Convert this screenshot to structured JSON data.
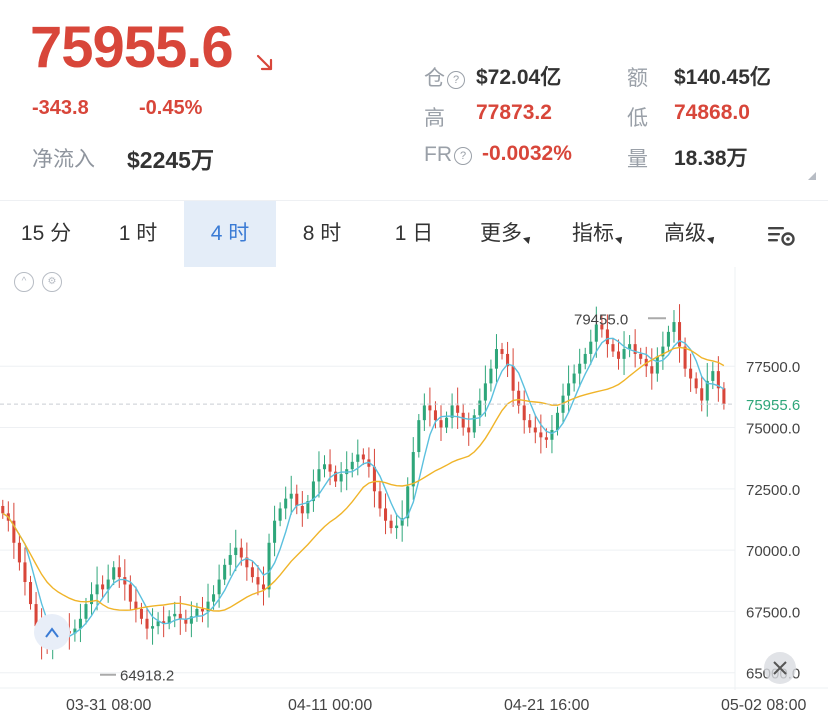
{
  "ticker": {
    "price": "75955.6",
    "change": "-343.8",
    "change_pct": "-0.45%",
    "net_inflow_label": "净流入",
    "net_inflow_value": "$2245万",
    "trend": "down-arrow-icon"
  },
  "stats": {
    "open_interest_label": "仓",
    "open_interest_value": "$72.04亿",
    "turnover_label": "额",
    "turnover_value": "$140.45亿",
    "high_label": "高",
    "high_value": "77873.2",
    "low_label": "低",
    "low_value": "74868.0",
    "funding_label": "FR",
    "funding_value": "-0.0032%",
    "volume_label": "量",
    "volume_value": "18.38万"
  },
  "tabs": [
    {
      "label": "15 分"
    },
    {
      "label": "1 时"
    },
    {
      "label": "4 时",
      "active": true
    },
    {
      "label": "8 时"
    },
    {
      "label": "1 日"
    },
    {
      "label": "更多"
    },
    {
      "label": "指标"
    },
    {
      "label": "高级"
    }
  ],
  "chart_data": {
    "type": "candlestick",
    "y_axis_ticks": [
      "77500.0",
      "75000.0",
      "72500.0",
      "70000.0",
      "67500.0",
      "65000.0"
    ],
    "x_axis_ticks": [
      "03-31 08:00",
      "04-11 00:00",
      "04-21 16:00",
      "05-02 08:00"
    ],
    "current_price_label": "75955.6",
    "max_label": "79455.0",
    "min_label": "64918.2",
    "ylim": [
      64500,
      80200
    ],
    "ma_colors": {
      "fast": "#5bc0de",
      "slow": "#f0b429"
    },
    "up_color": "#2ea67a",
    "down_color": "#d8463a",
    "closes": [
      71500,
      71200,
      70300,
      69500,
      68700,
      67800,
      66900,
      66200,
      66100,
      66400,
      66600,
      66700,
      66600,
      66800,
      67200,
      67800,
      68200,
      68600,
      68400,
      68800,
      69300,
      68900,
      68600,
      67900,
      67600,
      67200,
      66800,
      66900,
      67100,
      67000,
      67300,
      67400,
      67200,
      67000,
      67300,
      67600,
      67500,
      67900,
      68200,
      68800,
      69400,
      69800,
      70100,
      69700,
      69300,
      68900,
      68600,
      68400,
      70300,
      71200,
      71700,
      72100,
      72300,
      71800,
      71500,
      72000,
      72800,
      73300,
      73500,
      73200,
      72800,
      73100,
      73300,
      73600,
      73900,
      73700,
      73400,
      72400,
      71700,
      71200,
      70900,
      71000,
      71300,
      72600,
      74000,
      75300,
      75900,
      75700,
      75300,
      75000,
      75400,
      75900,
      75600,
      75000,
      74800,
      75500,
      76100,
      76800,
      77400,
      78200,
      78000,
      77500,
      76500,
      75900,
      75300,
      75000,
      74800,
      74600,
      74500,
      74900,
      75600,
      76300,
      76800,
      77200,
      77600,
      78000,
      78500,
      79200,
      79000,
      78400,
      78100,
      77800,
      78200,
      78400,
      78000,
      77800,
      77500,
      77200,
      77900,
      78300,
      78900,
      79300,
      78300,
      77400,
      77000,
      76600,
      76100,
      76900,
      77300,
      76600,
      75955.6
    ]
  }
}
